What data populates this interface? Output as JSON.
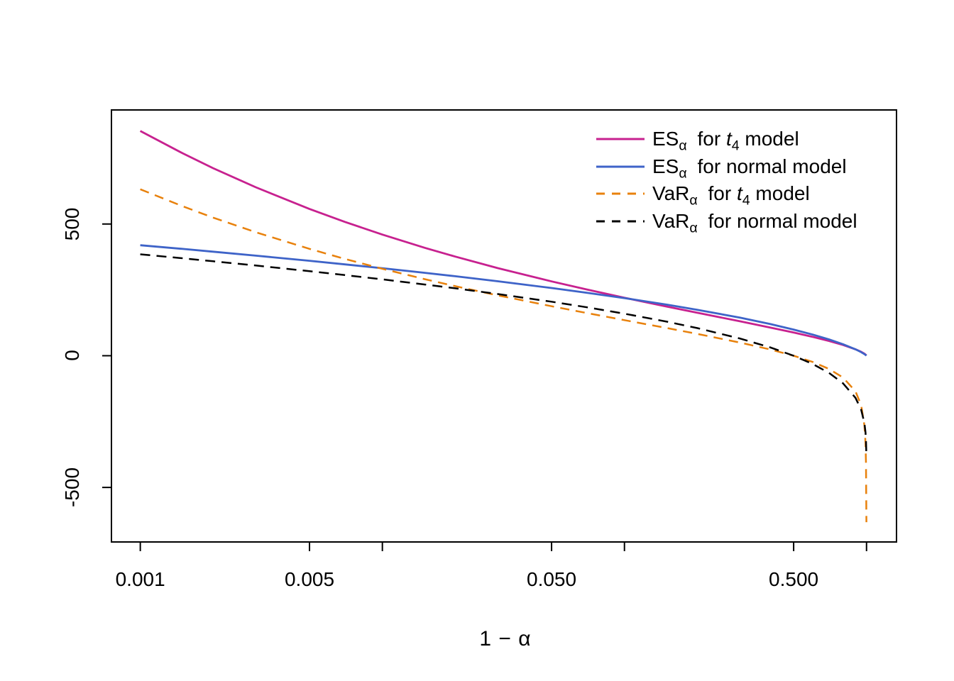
{
  "chart_data": {
    "type": "line",
    "title": "",
    "xlabel": "1 − α",
    "ylabel": "",
    "x_scale": "log10",
    "grid": false,
    "legend_position": "top-right",
    "x_range": [
      0.00076,
      1.33
    ],
    "y_range": [
      -707,
      933
    ],
    "x_ticks": [
      {
        "value": 0.001,
        "label": "0.001"
      },
      {
        "value": 0.005,
        "label": "0.005"
      },
      {
        "value": 0.01,
        "label": ""
      },
      {
        "value": 0.05,
        "label": "0.050"
      },
      {
        "value": 0.1,
        "label": ""
      },
      {
        "value": 0.5,
        "label": "0.500"
      },
      {
        "value": 1,
        "label": ""
      }
    ],
    "y_ticks": [
      {
        "value": 500,
        "label": "500"
      },
      {
        "value": 0,
        "label": "0"
      },
      {
        "value": -500,
        "label": "-500"
      }
    ],
    "series": [
      {
        "name": "es-t4",
        "color": "#C7218F",
        "dash": "",
        "width": 2.8,
        "points": [
          [
            0.001,
            853.4
          ],
          [
            0.0015,
            767.8
          ],
          [
            0.002,
            712.0
          ],
          [
            0.003,
            639.4
          ],
          [
            0.005,
            557.2
          ],
          [
            0.007,
            508.1
          ],
          [
            0.01,
            459.9
          ],
          [
            0.015,
            409.5
          ],
          [
            0.02,
            376.3
          ],
          [
            0.03,
            332.6
          ],
          [
            0.05,
            282.2
          ],
          [
            0.07,
            251.3
          ],
          [
            0.1,
            220.2
          ],
          [
            0.15,
            186.4
          ],
          [
            0.2,
            163.2
          ],
          [
            0.3,
            130.7
          ],
          [
            0.4,
            107.2
          ],
          [
            0.5,
            88.1
          ],
          [
            0.6,
            71.4
          ],
          [
            0.7,
            56.0
          ],
          [
            0.8,
            40.8
          ],
          [
            0.9,
            24.5
          ],
          [
            0.95,
            14.9
          ],
          [
            0.98,
            7.7
          ],
          [
            0.99,
            4.6
          ],
          [
            0.995,
            2.8
          ],
          [
            0.999,
            0.9
          ]
        ]
      },
      {
        "name": "es-normal",
        "color": "#3E63C8",
        "dash": "",
        "width": 2.8,
        "points": [
          [
            0.001,
            419.5
          ],
          [
            0.0015,
            405.4
          ],
          [
            0.002,
            395.0
          ],
          [
            0.003,
            380.0
          ],
          [
            0.005,
            360.4
          ],
          [
            0.007,
            346.8
          ],
          [
            0.01,
            332.1
          ],
          [
            0.015,
            314.6
          ],
          [
            0.02,
            301.7
          ],
          [
            0.03,
            282.6
          ],
          [
            0.05,
            257.0
          ],
          [
            0.07,
            239.0
          ],
          [
            0.1,
            218.7
          ],
          [
            0.15,
            193.7
          ],
          [
            0.2,
            174.4
          ],
          [
            0.3,
            144.4
          ],
          [
            0.4,
            120.3
          ],
          [
            0.5,
            99.4
          ],
          [
            0.6,
            80.2
          ],
          [
            0.7,
            61.9
          ],
          [
            0.8,
            43.6
          ],
          [
            0.9,
            24.3
          ],
          [
            0.95,
            13.5
          ],
          [
            0.98,
            6.2
          ],
          [
            0.99,
            3.4
          ],
          [
            0.995,
            1.8
          ],
          [
            0.999,
            0.4
          ]
        ]
      },
      {
        "name": "var-t4",
        "color": "#E8810C",
        "dash": "13 9",
        "width": 2.5,
        "points": [
          [
            0.001,
            631.9
          ],
          [
            0.0015,
            566.9
          ],
          [
            0.002,
            524.3
          ],
          [
            0.003,
            468.8
          ],
          [
            0.005,
            405.6
          ],
          [
            0.007,
            367.6
          ],
          [
            0.01,
            330.1
          ],
          [
            0.015,
            290.5
          ],
          [
            0.02,
            264.2
          ],
          [
            0.03,
            229.1
          ],
          [
            0.05,
            187.8
          ],
          [
            0.07,
            161.9
          ],
          [
            0.1,
            135.1
          ],
          [
            0.15,
            104.8
          ],
          [
            0.2,
            82.9
          ],
          [
            0.3,
            50.1
          ],
          [
            0.4,
            23.9
          ],
          [
            0.5,
            0
          ],
          [
            0.6,
            -23.9
          ],
          [
            0.7,
            -50.1
          ],
          [
            0.8,
            -82.9
          ],
          [
            0.9,
            -135.1
          ],
          [
            0.95,
            -187.8
          ],
          [
            0.98,
            -264.2
          ],
          [
            0.99,
            -330.1
          ],
          [
            0.995,
            -405.6
          ],
          [
            0.999,
            -631.9
          ]
        ]
      },
      {
        "name": "var-normal",
        "color": "#000000",
        "dash": "14 9",
        "width": 2.5,
        "points": [
          [
            0.001,
            385.0
          ],
          [
            0.0015,
            369.8
          ],
          [
            0.002,
            358.6
          ],
          [
            0.003,
            342.4
          ],
          [
            0.005,
            320.9
          ],
          [
            0.007,
            306.2
          ],
          [
            0.01,
            289.9
          ],
          [
            0.015,
            270.4
          ],
          [
            0.02,
            255.9
          ],
          [
            0.03,
            234.3
          ],
          [
            0.05,
            205.0
          ],
          [
            0.07,
            183.9
          ],
          [
            0.1,
            159.7
          ],
          [
            0.15,
            129.1
          ],
          [
            0.2,
            104.9
          ],
          [
            0.3,
            65.3
          ],
          [
            0.4,
            31.6
          ],
          [
            0.5,
            0
          ],
          [
            0.6,
            -31.6
          ],
          [
            0.7,
            -65.3
          ],
          [
            0.8,
            -104.9
          ],
          [
            0.9,
            -159.7
          ],
          [
            0.95,
            -205.0
          ],
          [
            0.98,
            -255.9
          ],
          [
            0.99,
            -289.9
          ],
          [
            0.995,
            -320.9
          ],
          [
            0.999,
            -385.0
          ]
        ]
      }
    ],
    "legend": [
      {
        "measure": "ES",
        "measure_sub": "α",
        "connector": "for",
        "model": "t",
        "model_sub": "4",
        "model_italic": true,
        "tail": "model",
        "color": "#C7218F",
        "style": "solid"
      },
      {
        "measure": "ES",
        "measure_sub": "α",
        "connector": "for",
        "model": "normal",
        "model_sub": "",
        "model_italic": false,
        "tail": "model",
        "color": "#3E63C8",
        "style": "solid"
      },
      {
        "measure": "VaR",
        "measure_sub": "α",
        "connector": "for",
        "model": "t",
        "model_sub": "4",
        "model_italic": true,
        "tail": "model",
        "color": "#E8810C",
        "style": "dashed"
      },
      {
        "measure": "VaR",
        "measure_sub": "α",
        "connector": "for",
        "model": "normal",
        "model_sub": "",
        "model_italic": false,
        "tail": "model",
        "color": "#000000",
        "style": "dashed"
      }
    ]
  },
  "colors": {
    "background": "#FFFFFF",
    "axis": "#000000",
    "es_t4": "#C7218F",
    "es_normal": "#3E63C8",
    "var_t4": "#E8810C",
    "var_normal": "#000000"
  }
}
